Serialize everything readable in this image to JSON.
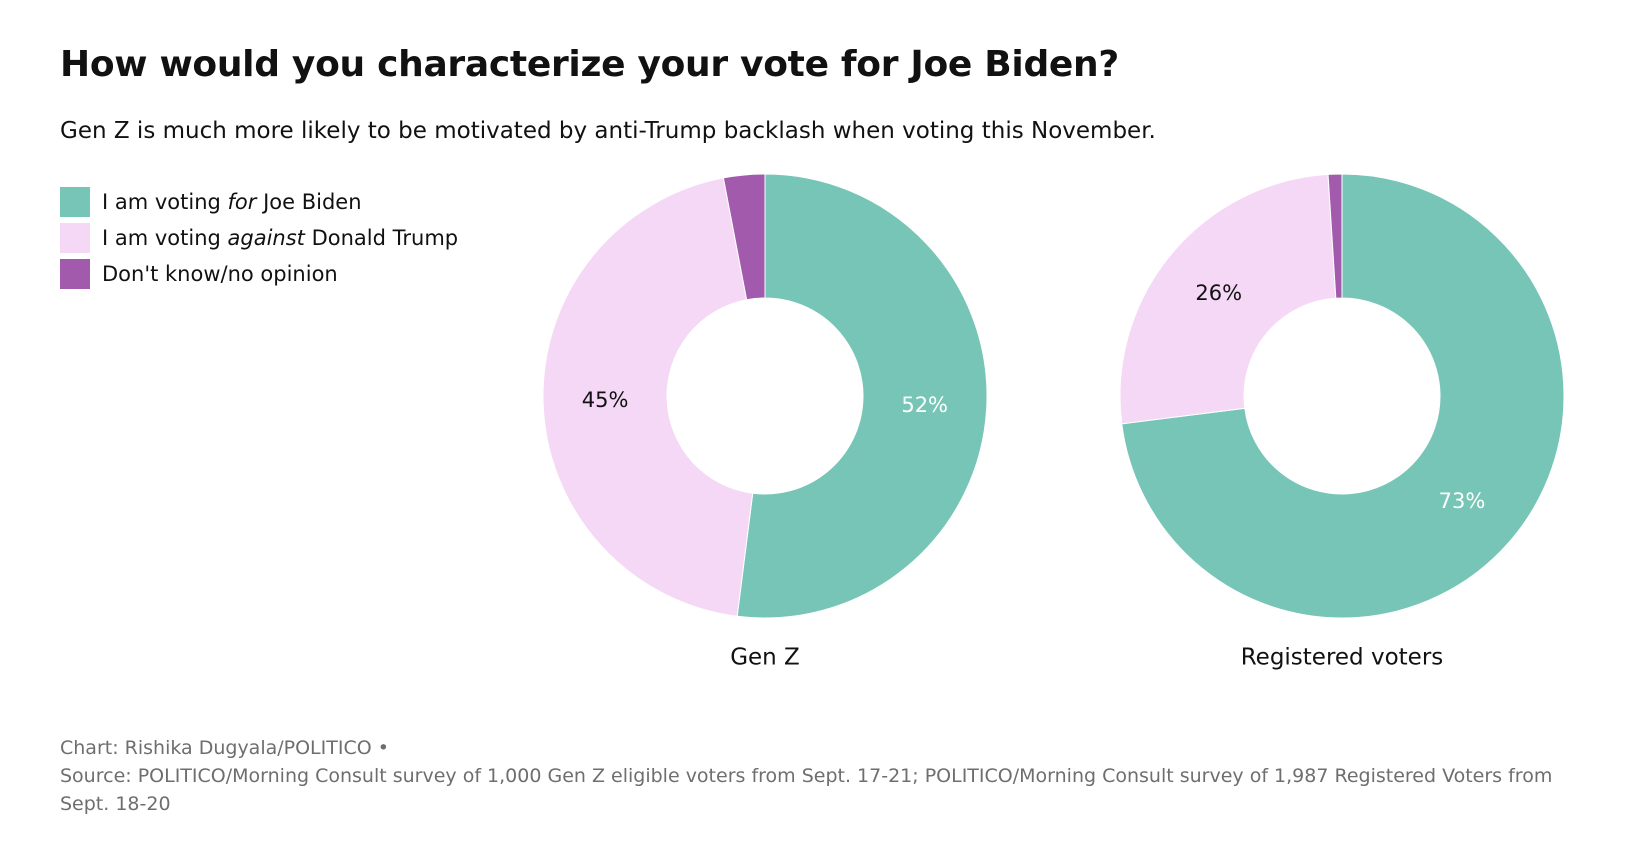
{
  "title": "How would you characterize your vote for Joe Biden?",
  "subtitle": "Gen Z is much more likely to be motivated by anti-Trump backlash when voting this November.",
  "legend": [
    {
      "pre": "I am voting ",
      "em": "for",
      "post": " Joe Biden",
      "color": "#76c5b6"
    },
    {
      "pre": "I am voting ",
      "em": "against",
      "post": " Donald Trump",
      "color": "#f4d8f6"
    },
    {
      "pre": "Don't know/no opinion",
      "em": "",
      "post": "",
      "color": "#a25aac"
    }
  ],
  "chart_data": [
    {
      "type": "pie",
      "title": "Gen Z",
      "slices": [
        {
          "label": "I am voting for Joe Biden",
          "value": 52,
          "color": "#76c5b6",
          "text": "52%",
          "text_color": "#ffffff"
        },
        {
          "label": "I am voting against Donald Trump",
          "value": 45,
          "color": "#f4d8f6",
          "text": "45%",
          "text_color": "#111111"
        },
        {
          "label": "Don't know/no opinion",
          "value": 3,
          "color": "#a25aac",
          "text": "",
          "text_color": "#111111"
        }
      ]
    },
    {
      "type": "pie",
      "title": "Registered voters",
      "slices": [
        {
          "label": "I am voting for Joe Biden",
          "value": 73,
          "color": "#76c5b6",
          "text": "73%",
          "text_color": "#ffffff"
        },
        {
          "label": "I am voting against Donald Trump",
          "value": 26,
          "color": "#f4d8f6",
          "text": "26%",
          "text_color": "#111111"
        },
        {
          "label": "Don't know/no opinion",
          "value": 1,
          "color": "#a25aac",
          "text": "",
          "text_color": "#111111"
        }
      ]
    }
  ],
  "footer": {
    "credit": "Chart: Rishika Dugyala/POLITICO •",
    "source": "Source: POLITICO/Morning Consult survey of 1,000 Gen Z eligible voters from Sept. 17-21; POLITICO/Morning Consult survey of 1,987 Registered Voters from Sept. 18-20"
  }
}
